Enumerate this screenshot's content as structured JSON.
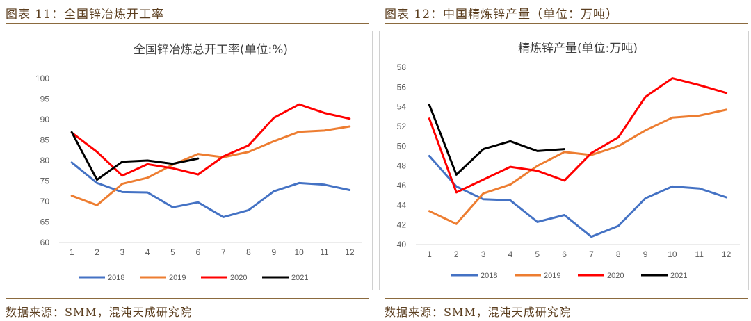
{
  "left_panel": {
    "figure_title": "图表 11：全国锌冶炼开工率",
    "source": "数据来源：SMM，混沌天成研究院"
  },
  "right_panel": {
    "figure_title": "图表 12：中国精炼锌产量（单位：万吨）",
    "source": "数据来源：SMM，混沌天成研究院"
  },
  "chart_data": [
    {
      "type": "line",
      "title": "全国锌冶炼总开工率(单位:%)",
      "x": [
        "1",
        "2",
        "3",
        "4",
        "5",
        "6",
        "7",
        "8",
        "9",
        "10",
        "11",
        "12"
      ],
      "ylim": [
        60,
        100
      ],
      "yticks": [
        "60",
        "65",
        "70",
        "75",
        "80",
        "85",
        "90",
        "95",
        "100"
      ],
      "grid": false,
      "legend": "bottom",
      "series": [
        {
          "name": "2018",
          "color": "#4472c4",
          "values": [
            79.5,
            74.5,
            72.3,
            72.2,
            68.6,
            69.8,
            66.2,
            67.9,
            72.5,
            74.5,
            74.1,
            72.8
          ]
        },
        {
          "name": "2019",
          "color": "#ed7d31",
          "values": [
            71.4,
            69.1,
            74.3,
            75.8,
            79.0,
            81.6,
            80.8,
            82.1,
            84.7,
            87.0,
            87.3,
            88.3
          ]
        },
        {
          "name": "2020",
          "color": "#ff0000",
          "values": [
            86.8,
            82.1,
            76.3,
            79.1,
            78.1,
            76.6,
            81.0,
            83.7,
            90.4,
            93.7,
            91.6,
            90.2
          ]
        },
        {
          "name": "2021",
          "color": "#000000",
          "values": [
            86.9,
            75.3,
            79.7,
            80.0,
            79.2,
            80.5,
            null,
            null,
            null,
            null,
            null,
            null
          ]
        }
      ]
    },
    {
      "type": "line",
      "title": "精炼锌产量(单位:万吨)",
      "x": [
        "1",
        "2",
        "3",
        "4",
        "5",
        "6",
        "7",
        "8",
        "9",
        "10",
        "11",
        "12"
      ],
      "ylim": [
        40,
        58
      ],
      "yticks": [
        "40",
        "42",
        "44",
        "46",
        "48",
        "50",
        "52",
        "54",
        "56",
        "58"
      ],
      "grid": false,
      "legend": "bottom",
      "series": [
        {
          "name": "2018",
          "color": "#4472c4",
          "values": [
            49.0,
            45.9,
            44.6,
            44.5,
            42.3,
            43.0,
            40.8,
            41.9,
            44.7,
            45.9,
            45.7,
            44.8
          ]
        },
        {
          "name": "2019",
          "color": "#ed7d31",
          "values": [
            43.4,
            42.1,
            45.2,
            46.1,
            48.0,
            49.4,
            49.1,
            50.0,
            51.6,
            52.9,
            53.1,
            53.7
          ]
        },
        {
          "name": "2020",
          "color": "#ff0000",
          "values": [
            52.8,
            45.3,
            46.6,
            47.9,
            47.5,
            46.5,
            49.3,
            50.9,
            55.0,
            56.9,
            56.2,
            55.4
          ]
        },
        {
          "name": "2021",
          "color": "#000000",
          "values": [
            54.2,
            47.1,
            49.7,
            50.5,
            49.5,
            49.7,
            null,
            null,
            null,
            null,
            null,
            null
          ]
        }
      ]
    }
  ]
}
